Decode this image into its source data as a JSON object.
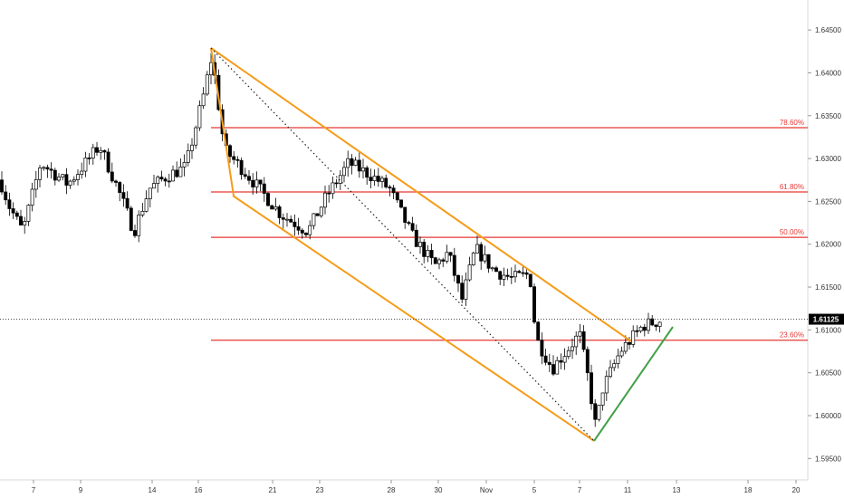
{
  "chart_data": {
    "type": "candlestick",
    "title": "",
    "xlabel": "",
    "ylabel": "",
    "ylim": [
      1.5925,
      1.6485
    ],
    "x_ticks": [
      "7",
      "9",
      "14",
      "16",
      "21",
      "23",
      "28",
      "30",
      "Nov",
      "5",
      "7",
      "11",
      "13",
      "18",
      "20"
    ],
    "y_ticks": [
      "1.64500",
      "1.64000",
      "1.63500",
      "1.63000",
      "1.62500",
      "1.62000",
      "1.61500",
      "1.61000",
      "1.60500",
      "1.60000",
      "1.59500"
    ],
    "last_price": "1.61125",
    "fib_levels": [
      {
        "label": "78.60%",
        "value": 1.6336
      },
      {
        "label": "61.80%",
        "value": 1.6261
      },
      {
        "label": "50.00%",
        "value": 1.6208
      },
      {
        "label": "23.60%",
        "value": 1.6088
      }
    ],
    "channel_color": "#f59c1a",
    "fib_color": "#e53935",
    "trend_color": "#43a047",
    "up_color": "#ffffff",
    "down_color": "#000000"
  }
}
